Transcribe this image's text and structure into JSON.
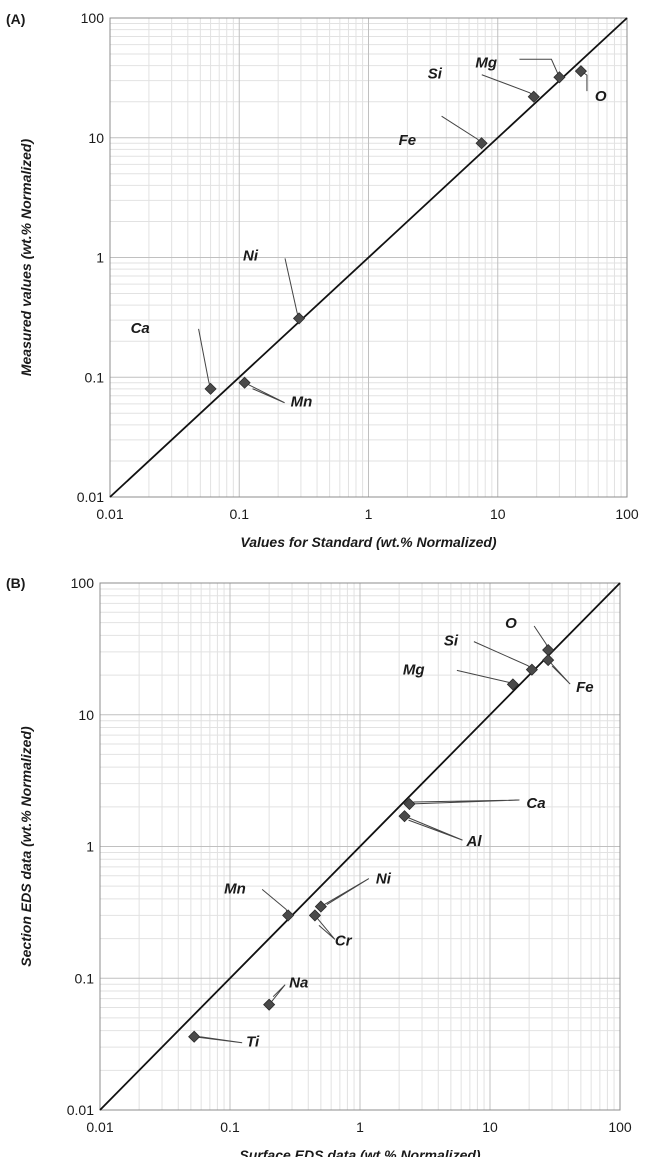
{
  "chart_data": [
    {
      "type": "scatter",
      "panel_label": "(A)",
      "xlabel": "Values for Standard (wt.% Normalized)",
      "ylabel": "Measured values (wt.% Normalized)",
      "xscale": "log",
      "yscale": "log",
      "xlim": [
        0.01,
        100
      ],
      "ylim": [
        0.01,
        100
      ],
      "x_tick_labels": [
        "0.01",
        "0.1",
        "1",
        "10",
        "100"
      ],
      "y_tick_labels": [
        "0.01",
        "0.1",
        "1",
        "10",
        "100"
      ],
      "grid": true,
      "reference_line": "y = x",
      "points": [
        {
          "label": "Mg",
          "x": 30,
          "y": 32
        },
        {
          "label": "Si",
          "x": 19,
          "y": 22
        },
        {
          "label": "O",
          "x": 44,
          "y": 36
        },
        {
          "label": "Fe",
          "x": 7.5,
          "y": 9
        },
        {
          "label": "Ni",
          "x": 0.29,
          "y": 0.31
        },
        {
          "label": "Ca",
          "x": 0.06,
          "y": 0.08
        },
        {
          "label": "Mn",
          "x": 0.11,
          "y": 0.09
        }
      ]
    },
    {
      "type": "scatter",
      "panel_label": "(B)",
      "xlabel": "Surface EDS data (wt.% Normalized)",
      "ylabel": "Section EDS data (wt.% Normalized)",
      "xscale": "log",
      "yscale": "log",
      "xlim": [
        0.01,
        100
      ],
      "ylim": [
        0.01,
        100
      ],
      "x_tick_labels": [
        "0.01",
        "0.1",
        "1",
        "10",
        "100"
      ],
      "y_tick_labels": [
        "0.01",
        "0.1",
        "1",
        "10",
        "100"
      ],
      "grid": true,
      "reference_line": "y = x",
      "points": [
        {
          "label": "O",
          "x": 28,
          "y": 31
        },
        {
          "label": "Si",
          "x": 21,
          "y": 22
        },
        {
          "label": "Fe",
          "x": 28,
          "y": 26
        },
        {
          "label": "Mg",
          "x": 15,
          "y": 17
        },
        {
          "label": "Ca",
          "x": 2.4,
          "y": 2.1
        },
        {
          "label": "Al",
          "x": 2.2,
          "y": 1.7
        },
        {
          "label": "Mn",
          "x": 0.28,
          "y": 0.3
        },
        {
          "label": "Ni",
          "x": 0.5,
          "y": 0.35
        },
        {
          "label": "Cr",
          "x": 0.45,
          "y": 0.3
        },
        {
          "label": "Na",
          "x": 0.2,
          "y": 0.063
        },
        {
          "label": "Ti",
          "x": 0.053,
          "y": 0.036
        }
      ]
    }
  ]
}
